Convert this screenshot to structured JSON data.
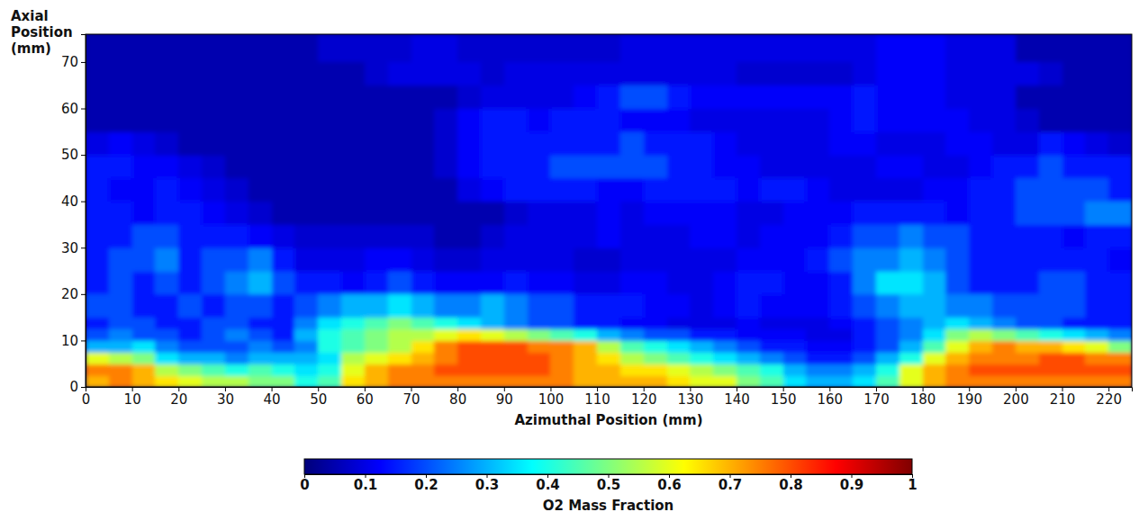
{
  "chart_data": {
    "type": "heatmap",
    "x_label": "Azimuthal Position (mm)",
    "y_label": "Axial Position (mm)",
    "xlim": [
      0,
      225
    ],
    "ylim": [
      0,
      76
    ],
    "xticks": [
      0,
      10,
      20,
      30,
      40,
      50,
      60,
      70,
      80,
      90,
      100,
      110,
      120,
      130,
      140,
      150,
      160,
      170,
      180,
      190,
      200,
      210,
      220
    ],
    "yticks": [
      0,
      10,
      20,
      30,
      40,
      50,
      60,
      70
    ],
    "x_edges": [
      0,
      5,
      10,
      15,
      20,
      25,
      30,
      35,
      40,
      45,
      50,
      55,
      60,
      65,
      70,
      75,
      80,
      85,
      90,
      95,
      100,
      105,
      110,
      115,
      120,
      125,
      130,
      135,
      140,
      145,
      150,
      155,
      160,
      165,
      170,
      175,
      180,
      185,
      190,
      195,
      200,
      205,
      210,
      215,
      220,
      225
    ],
    "y_edges": [
      0,
      2.5,
      5,
      7.5,
      10,
      12.5,
      15,
      20,
      25,
      30,
      35,
      40,
      45,
      50,
      55,
      60,
      65,
      70,
      76
    ],
    "cells": [
      [
        0.7,
        0.75,
        0.7,
        0.65,
        0.6,
        0.55,
        0.55,
        0.5,
        0.5,
        0.4,
        0.45,
        0.65,
        0.7,
        0.75,
        0.75,
        0.75,
        0.75,
        0.75,
        0.75,
        0.75,
        0.75,
        0.7,
        0.7,
        0.7,
        0.7,
        0.65,
        0.6,
        0.6,
        0.5,
        0.45,
        0.35,
        0.3,
        0.3,
        0.35,
        0.45,
        0.6,
        0.7,
        0.75,
        0.75,
        0.75,
        0.75,
        0.75,
        0.75,
        0.75,
        0.75
      ],
      [
        0.75,
        0.75,
        0.7,
        0.55,
        0.5,
        0.45,
        0.4,
        0.45,
        0.4,
        0.35,
        0.4,
        0.6,
        0.7,
        0.75,
        0.75,
        0.8,
        0.8,
        0.8,
        0.8,
        0.8,
        0.75,
        0.7,
        0.7,
        0.65,
        0.65,
        0.6,
        0.55,
        0.5,
        0.45,
        0.4,
        0.3,
        0.25,
        0.25,
        0.3,
        0.4,
        0.6,
        0.7,
        0.75,
        0.8,
        0.8,
        0.8,
        0.8,
        0.8,
        0.8,
        0.8
      ],
      [
        0.6,
        0.55,
        0.5,
        0.35,
        0.3,
        0.3,
        0.25,
        0.3,
        0.3,
        0.3,
        0.35,
        0.55,
        0.6,
        0.65,
        0.7,
        0.75,
        0.8,
        0.8,
        0.8,
        0.8,
        0.75,
        0.7,
        0.65,
        0.55,
        0.5,
        0.45,
        0.4,
        0.35,
        0.3,
        0.25,
        0.2,
        0.15,
        0.15,
        0.2,
        0.3,
        0.4,
        0.6,
        0.7,
        0.75,
        0.75,
        0.75,
        0.8,
        0.8,
        0.75,
        0.75
      ],
      [
        0.3,
        0.3,
        0.35,
        0.25,
        0.2,
        0.2,
        0.2,
        0.25,
        0.2,
        0.25,
        0.4,
        0.45,
        0.5,
        0.55,
        0.65,
        0.75,
        0.8,
        0.8,
        0.8,
        0.75,
        0.75,
        0.7,
        0.55,
        0.45,
        0.4,
        0.35,
        0.3,
        0.25,
        0.2,
        0.15,
        0.15,
        0.12,
        0.12,
        0.15,
        0.2,
        0.3,
        0.45,
        0.6,
        0.7,
        0.75,
        0.7,
        0.7,
        0.65,
        0.6,
        0.5
      ],
      [
        0.2,
        0.25,
        0.2,
        0.2,
        0.15,
        0.2,
        0.25,
        0.2,
        0.15,
        0.3,
        0.4,
        0.45,
        0.5,
        0.55,
        0.55,
        0.6,
        0.65,
        0.6,
        0.55,
        0.5,
        0.45,
        0.4,
        0.3,
        0.25,
        0.2,
        0.2,
        0.15,
        0.15,
        0.12,
        0.12,
        0.12,
        0.1,
        0.1,
        0.15,
        0.2,
        0.25,
        0.35,
        0.5,
        0.55,
        0.5,
        0.45,
        0.4,
        0.35,
        0.3,
        0.25
      ],
      [
        0.15,
        0.2,
        0.2,
        0.15,
        0.15,
        0.2,
        0.2,
        0.15,
        0.15,
        0.25,
        0.35,
        0.4,
        0.45,
        0.5,
        0.45,
        0.4,
        0.35,
        0.3,
        0.25,
        0.2,
        0.2,
        0.15,
        0.15,
        0.12,
        0.12,
        0.1,
        0.1,
        0.1,
        0.12,
        0.1,
        0.1,
        0.1,
        0.12,
        0.15,
        0.2,
        0.25,
        0.3,
        0.35,
        0.3,
        0.25,
        0.2,
        0.2,
        0.15,
        0.15,
        0.15
      ],
      [
        0.2,
        0.2,
        0.15,
        0.15,
        0.2,
        0.15,
        0.2,
        0.2,
        0.15,
        0.2,
        0.25,
        0.3,
        0.3,
        0.35,
        0.3,
        0.25,
        0.25,
        0.3,
        0.25,
        0.2,
        0.2,
        0.15,
        0.15,
        0.15,
        0.12,
        0.12,
        0.1,
        0.12,
        0.15,
        0.12,
        0.12,
        0.12,
        0.15,
        0.2,
        0.25,
        0.3,
        0.3,
        0.25,
        0.25,
        0.2,
        0.2,
        0.2,
        0.2,
        0.15,
        0.15
      ],
      [
        0.15,
        0.2,
        0.15,
        0.2,
        0.15,
        0.2,
        0.25,
        0.3,
        0.2,
        0.15,
        0.15,
        0.12,
        0.15,
        0.2,
        0.15,
        0.12,
        0.12,
        0.12,
        0.15,
        0.12,
        0.12,
        0.1,
        0.1,
        0.12,
        0.12,
        0.1,
        0.1,
        0.12,
        0.15,
        0.15,
        0.12,
        0.12,
        0.15,
        0.25,
        0.35,
        0.35,
        0.3,
        0.2,
        0.15,
        0.15,
        0.15,
        0.2,
        0.2,
        0.15,
        0.15
      ],
      [
        0.15,
        0.2,
        0.2,
        0.25,
        0.15,
        0.2,
        0.2,
        0.25,
        0.15,
        0.1,
        0.1,
        0.1,
        0.12,
        0.12,
        0.1,
        0.08,
        0.08,
        0.1,
        0.1,
        0.1,
        0.1,
        0.08,
        0.08,
        0.1,
        0.1,
        0.1,
        0.1,
        0.1,
        0.12,
        0.12,
        0.12,
        0.15,
        0.2,
        0.25,
        0.25,
        0.3,
        0.25,
        0.2,
        0.15,
        0.15,
        0.15,
        0.15,
        0.15,
        0.15,
        0.12
      ],
      [
        0.15,
        0.15,
        0.2,
        0.2,
        0.15,
        0.15,
        0.15,
        0.12,
        0.1,
        0.08,
        0.08,
        0.08,
        0.08,
        0.08,
        0.08,
        0.05,
        0.05,
        0.08,
        0.1,
        0.1,
        0.1,
        0.1,
        0.12,
        0.1,
        0.1,
        0.1,
        0.12,
        0.12,
        0.1,
        0.12,
        0.12,
        0.12,
        0.15,
        0.2,
        0.2,
        0.25,
        0.2,
        0.2,
        0.15,
        0.15,
        0.15,
        0.15,
        0.12,
        0.15,
        0.15
      ],
      [
        0.15,
        0.15,
        0.12,
        0.15,
        0.15,
        0.12,
        0.1,
        0.08,
        0.05,
        0.05,
        0.05,
        0.05,
        0.05,
        0.05,
        0.05,
        0.05,
        0.05,
        0.05,
        0.08,
        0.1,
        0.1,
        0.1,
        0.12,
        0.1,
        0.12,
        0.12,
        0.12,
        0.12,
        0.1,
        0.1,
        0.12,
        0.12,
        0.12,
        0.15,
        0.15,
        0.15,
        0.15,
        0.12,
        0.15,
        0.15,
        0.2,
        0.2,
        0.2,
        0.25,
        0.25
      ],
      [
        0.15,
        0.12,
        0.12,
        0.15,
        0.12,
        0.1,
        0.08,
        0.05,
        0.05,
        0.05,
        0.05,
        0.05,
        0.05,
        0.05,
        0.05,
        0.05,
        0.1,
        0.12,
        0.15,
        0.15,
        0.15,
        0.15,
        0.12,
        0.12,
        0.15,
        0.15,
        0.15,
        0.15,
        0.12,
        0.15,
        0.15,
        0.12,
        0.1,
        0.1,
        0.1,
        0.1,
        0.12,
        0.12,
        0.15,
        0.15,
        0.2,
        0.2,
        0.2,
        0.2,
        0.15
      ],
      [
        0.15,
        0.15,
        0.12,
        0.12,
        0.1,
        0.08,
        0.05,
        0.05,
        0.05,
        0.05,
        0.05,
        0.05,
        0.05,
        0.05,
        0.05,
        0.08,
        0.12,
        0.15,
        0.15,
        0.15,
        0.2,
        0.2,
        0.2,
        0.2,
        0.2,
        0.15,
        0.15,
        0.12,
        0.12,
        0.1,
        0.1,
        0.1,
        0.1,
        0.1,
        0.12,
        0.12,
        0.1,
        0.1,
        0.12,
        0.15,
        0.15,
        0.2,
        0.15,
        0.15,
        0.15
      ],
      [
        0.1,
        0.12,
        0.1,
        0.08,
        0.05,
        0.05,
        0.05,
        0.05,
        0.05,
        0.05,
        0.05,
        0.05,
        0.05,
        0.05,
        0.05,
        0.08,
        0.12,
        0.15,
        0.15,
        0.15,
        0.15,
        0.15,
        0.15,
        0.2,
        0.15,
        0.15,
        0.15,
        0.12,
        0.1,
        0.1,
        0.1,
        0.1,
        0.12,
        0.12,
        0.1,
        0.1,
        0.1,
        0.12,
        0.12,
        0.1,
        0.1,
        0.15,
        0.12,
        0.1,
        0.08
      ],
      [
        0.05,
        0.05,
        0.05,
        0.05,
        0.05,
        0.05,
        0.05,
        0.05,
        0.05,
        0.05,
        0.05,
        0.05,
        0.05,
        0.05,
        0.05,
        0.08,
        0.12,
        0.15,
        0.15,
        0.12,
        0.15,
        0.15,
        0.15,
        0.12,
        0.12,
        0.12,
        0.1,
        0.1,
        0.1,
        0.1,
        0.1,
        0.1,
        0.12,
        0.15,
        0.12,
        0.12,
        0.12,
        0.12,
        0.1,
        0.1,
        0.08,
        0.05,
        0.05,
        0.05,
        0.05
      ],
      [
        0.05,
        0.05,
        0.05,
        0.05,
        0.05,
        0.05,
        0.05,
        0.05,
        0.05,
        0.05,
        0.05,
        0.05,
        0.05,
        0.05,
        0.05,
        0.05,
        0.08,
        0.1,
        0.1,
        0.1,
        0.1,
        0.12,
        0.15,
        0.2,
        0.2,
        0.15,
        0.12,
        0.12,
        0.12,
        0.12,
        0.12,
        0.12,
        0.12,
        0.15,
        0.12,
        0.12,
        0.12,
        0.1,
        0.1,
        0.1,
        0.05,
        0.05,
        0.05,
        0.05,
        0.05
      ],
      [
        0.05,
        0.05,
        0.05,
        0.05,
        0.05,
        0.05,
        0.05,
        0.05,
        0.05,
        0.05,
        0.05,
        0.05,
        0.08,
        0.1,
        0.1,
        0.1,
        0.1,
        0.08,
        0.1,
        0.1,
        0.1,
        0.1,
        0.1,
        0.1,
        0.1,
        0.1,
        0.1,
        0.1,
        0.08,
        0.08,
        0.08,
        0.08,
        0.08,
        0.1,
        0.12,
        0.12,
        0.12,
        0.1,
        0.1,
        0.1,
        0.1,
        0.08,
        0.05,
        0.05,
        0.05
      ],
      [
        0.05,
        0.05,
        0.05,
        0.05,
        0.05,
        0.05,
        0.05,
        0.05,
        0.05,
        0.05,
        0.08,
        0.08,
        0.08,
        0.08,
        0.1,
        0.1,
        0.08,
        0.08,
        0.08,
        0.08,
        0.08,
        0.08,
        0.08,
        0.1,
        0.1,
        0.1,
        0.1,
        0.1,
        0.1,
        0.1,
        0.1,
        0.1,
        0.1,
        0.1,
        0.12,
        0.12,
        0.12,
        0.1,
        0.1,
        0.1,
        0.05,
        0.05,
        0.05,
        0.05,
        0.05
      ]
    ],
    "colorbar_label": "O2 Mass Fraction",
    "colorbar_range": [
      0,
      1
    ],
    "colorbar_ticks": [
      0,
      0.1,
      0.2,
      0.3,
      0.4,
      0.5,
      0.6,
      0.7,
      0.8,
      0.9,
      1
    ]
  }
}
